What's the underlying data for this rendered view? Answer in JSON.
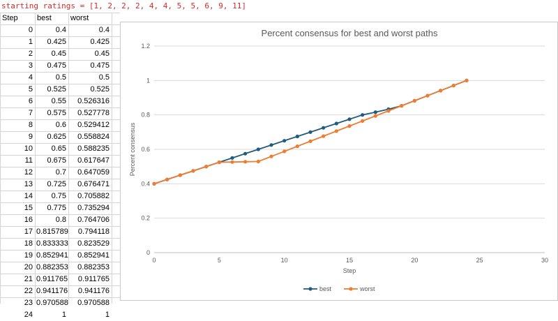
{
  "header_line": "starting ratings = [1, 2, 2, 2, 4, 4, 5, 5, 6, 9, 11]",
  "table": {
    "headers": [
      "Step",
      "best",
      "worst"
    ],
    "rows": [
      [
        "0",
        "0.4",
        "0.4"
      ],
      [
        "1",
        "0.425",
        "0.425"
      ],
      [
        "2",
        "0.45",
        "0.45"
      ],
      [
        "3",
        "0.475",
        "0.475"
      ],
      [
        "4",
        "0.5",
        "0.5"
      ],
      [
        "5",
        "0.525",
        "0.525"
      ],
      [
        "6",
        "0.55",
        "0.526316"
      ],
      [
        "7",
        "0.575",
        "0.527778"
      ],
      [
        "8",
        "0.6",
        "0.529412"
      ],
      [
        "9",
        "0.625",
        "0.558824"
      ],
      [
        "10",
        "0.65",
        "0.588235"
      ],
      [
        "11",
        "0.675",
        "0.617647"
      ],
      [
        "12",
        "0.7",
        "0.647059"
      ],
      [
        "13",
        "0.725",
        "0.676471"
      ],
      [
        "14",
        "0.75",
        "0.705882"
      ],
      [
        "15",
        "0.775",
        "0.735294"
      ],
      [
        "16",
        "0.8",
        "0.764706"
      ],
      [
        "17",
        "0.815789",
        "0.794118"
      ],
      [
        "18",
        "0.833333",
        "0.823529"
      ],
      [
        "19",
        "0.852941",
        "0.852941"
      ],
      [
        "20",
        "0.882353",
        "0.882353"
      ],
      [
        "21",
        "0.911765",
        "0.911765"
      ],
      [
        "22",
        "0.941176",
        "0.941176"
      ],
      [
        "23",
        "0.970588",
        "0.970588"
      ],
      [
        "24",
        "1",
        "1"
      ]
    ]
  },
  "chart_data": {
    "type": "line",
    "title": "Percent consensus for best and worst paths",
    "xlabel": "Step",
    "ylabel": "Percent consensus",
    "xlim": [
      0,
      30
    ],
    "ylim": [
      0,
      1.2
    ],
    "xticks": [
      "0",
      "5",
      "10",
      "15",
      "20",
      "25",
      "30"
    ],
    "yticks": [
      "0",
      "0.2",
      "0.4",
      "0.6",
      "0.8",
      "1",
      "1.2"
    ],
    "grid": "horizontal",
    "legend": "bottom",
    "x": [
      0,
      1,
      2,
      3,
      4,
      5,
      6,
      7,
      8,
      9,
      10,
      11,
      12,
      13,
      14,
      15,
      16,
      17,
      18,
      19,
      20,
      21,
      22,
      23,
      24
    ],
    "series": [
      {
        "name": "best",
        "color": "#1f5c7f",
        "values": [
          0.4,
          0.425,
          0.45,
          0.475,
          0.5,
          0.525,
          0.55,
          0.575,
          0.6,
          0.625,
          0.65,
          0.675,
          0.7,
          0.725,
          0.75,
          0.775,
          0.8,
          0.815789,
          0.833333,
          0.852941,
          0.882353,
          0.911765,
          0.941176,
          0.970588,
          1
        ]
      },
      {
        "name": "worst",
        "color": "#ee7d31",
        "values": [
          0.4,
          0.425,
          0.45,
          0.475,
          0.5,
          0.525,
          0.526316,
          0.527778,
          0.529412,
          0.558824,
          0.588235,
          0.617647,
          0.647059,
          0.676471,
          0.705882,
          0.735294,
          0.764706,
          0.794118,
          0.823529,
          0.852941,
          0.882353,
          0.911765,
          0.941176,
          0.970588,
          1
        ]
      }
    ]
  }
}
